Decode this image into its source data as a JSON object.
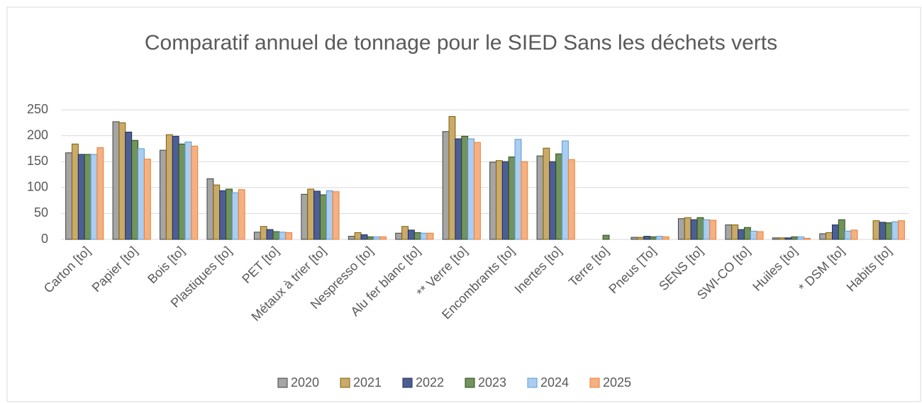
{
  "chart_data": {
    "type": "bar",
    "title": "Comparatif annuel de tonnage pour le SIED  Sans  les déchets verts",
    "categories": [
      "Carton [to]",
      "Papier [to]",
      "Bois [to]",
      "Plastiques [to]",
      "PET [to]",
      "Métaux à trier [to]",
      "Nespresso [to]",
      "Alu fer blanc [to]",
      "** Verre [to]",
      "Encombrants [to]",
      "Inertes [to]",
      "Terre [to]",
      "Pneus [To]",
      "SENS [to]",
      "SWI-CO [to]",
      "Huiles [to]",
      "* DSM [to]",
      "Habits [to]"
    ],
    "series": [
      {
        "name": "2020",
        "color": "#a5a5a5",
        "edge_color": "#404040",
        "values": [
          167,
          227,
          172,
          117,
          14,
          87,
          6,
          12,
          208,
          149,
          161,
          null,
          4,
          40,
          28,
          3,
          11,
          null
        ]
      },
      {
        "name": "2021",
        "color": "#c9aa6a",
        "edge_color": "#7f6000",
        "values": [
          184,
          225,
          202,
          105,
          25,
          97,
          13,
          25,
          237,
          152,
          176,
          null,
          4,
          42,
          28,
          3,
          13,
          36
        ]
      },
      {
        "name": "2022",
        "color": "#4c5f95",
        "edge_color": "#1f2d5a",
        "values": [
          164,
          207,
          199,
          94,
          19,
          93,
          9,
          18,
          194,
          150,
          150,
          null,
          6,
          38,
          19,
          3,
          28,
          33
        ]
      },
      {
        "name": "2023",
        "color": "#71935c",
        "edge_color": "#2e4a1c",
        "values": [
          164,
          191,
          184,
          97,
          15,
          86,
          5,
          13,
          199,
          159,
          165,
          8,
          5,
          42,
          23,
          5,
          38,
          32
        ]
      },
      {
        "name": "2024",
        "color": "#aacdf0",
        "edge_color": "#5b9bd5",
        "values": [
          164,
          175,
          188,
          90,
          14,
          94,
          5,
          12,
          194,
          193,
          190,
          null,
          6,
          38,
          16,
          5,
          16,
          34
        ]
      },
      {
        "name": "2025",
        "color": "#f4b183",
        "edge_color": "#ed7d31",
        "values": [
          177,
          155,
          180,
          96,
          13,
          92,
          5,
          12,
          187,
          150,
          154,
          null,
          5,
          37,
          15,
          2,
          18,
          36
        ]
      }
    ],
    "ylim": [
      0,
      250
    ],
    "yticks": [
      0,
      50,
      100,
      150,
      200,
      250
    ],
    "grid": true,
    "legend": "bottom"
  }
}
